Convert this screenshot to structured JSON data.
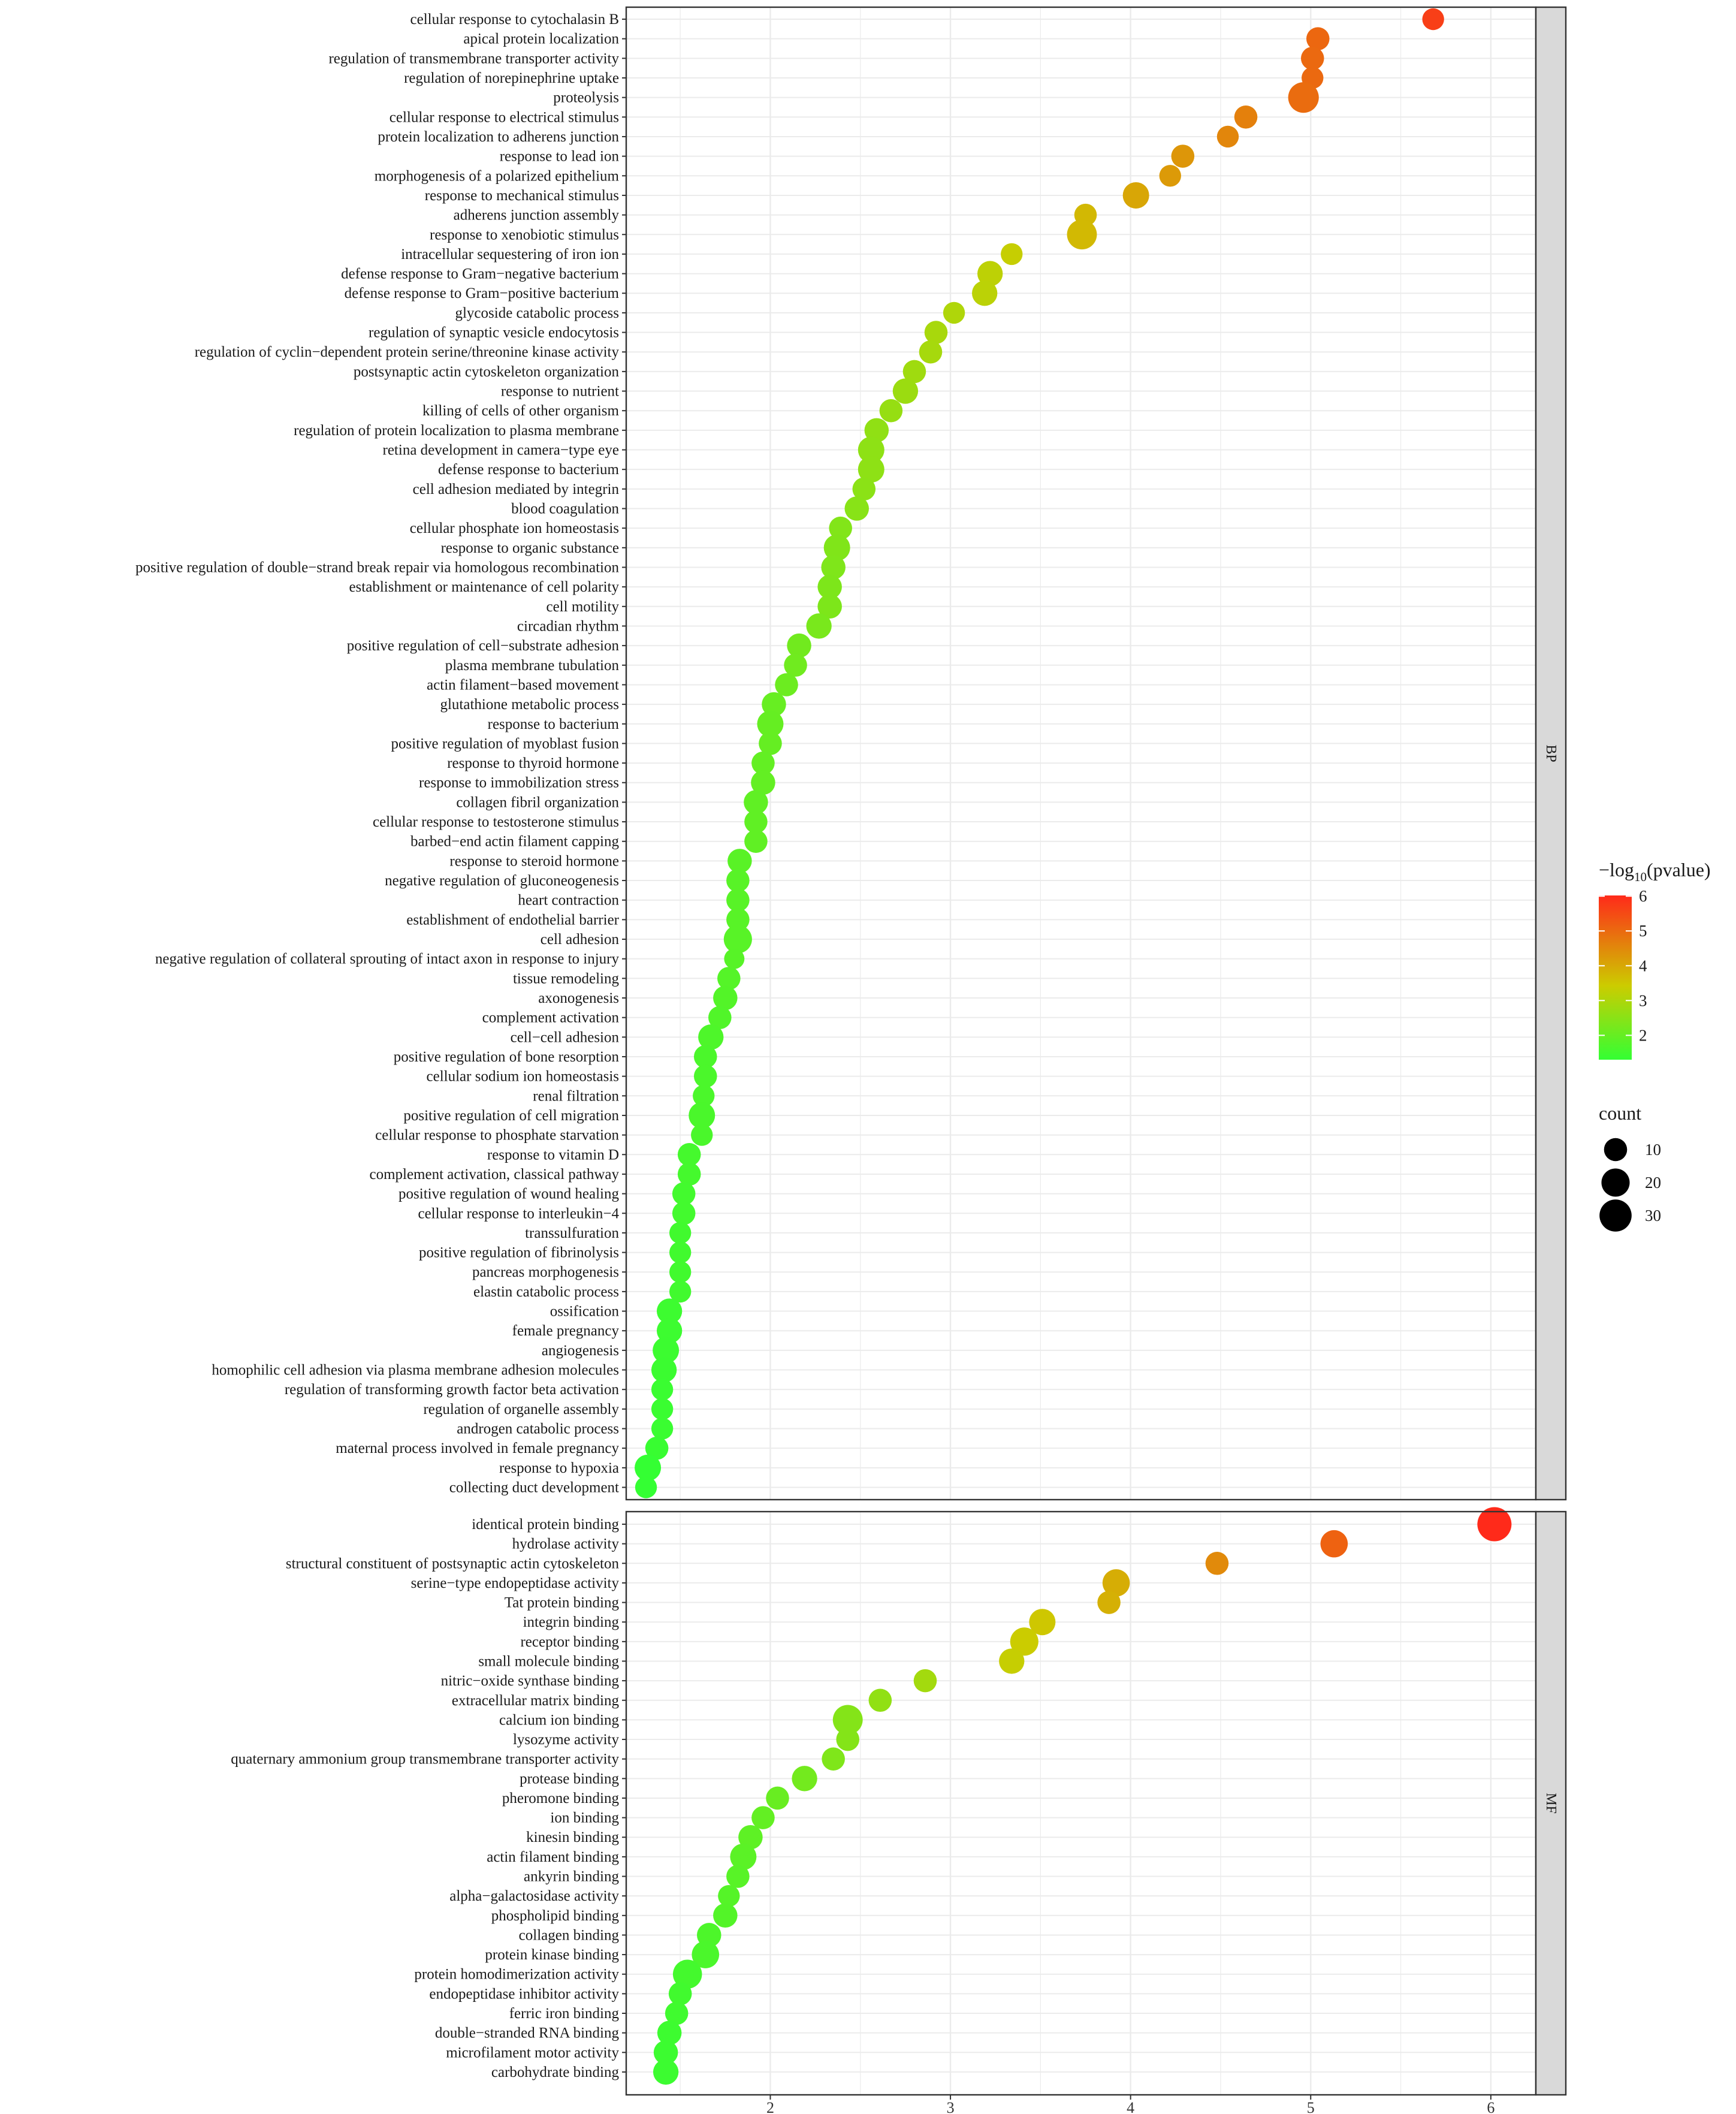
{
  "chart_data": {
    "type": "scatter",
    "title": "",
    "xlabel": "",
    "ylabel": "",
    "xlim": [
      1.2,
      6.25
    ],
    "x_ticks": [
      2,
      3,
      4,
      5,
      6
    ],
    "x_tick_labels": [
      "2",
      "3",
      "4",
      "5",
      "6"
    ],
    "grid": true,
    "facets": [
      {
        "name": "BP",
        "terms": [
          {
            "term": "cellular response to cytochalasin B",
            "x": 5.68,
            "count": 8,
            "logp": 5.68
          },
          {
            "term": "apical protein localization",
            "x": 5.04,
            "count": 10,
            "logp": 5.04
          },
          {
            "term": "regulation of transmembrane transporter activity",
            "x": 5.01,
            "count": 10,
            "logp": 5.01
          },
          {
            "term": "regulation of norepinephrine uptake",
            "x": 5.01,
            "count": 8,
            "logp": 5.01
          },
          {
            "term": "proteolysis",
            "x": 4.96,
            "count": 26,
            "logp": 4.96
          },
          {
            "term": "cellular response to electrical stimulus",
            "x": 4.64,
            "count": 10,
            "logp": 4.64
          },
          {
            "term": "protein localization to adherens junction",
            "x": 4.54,
            "count": 8,
            "logp": 4.54
          },
          {
            "term": "response to lead ion",
            "x": 4.29,
            "count": 10,
            "logp": 4.29
          },
          {
            "term": "morphogenesis of a polarized epithelium",
            "x": 4.22,
            "count": 8,
            "logp": 4.22
          },
          {
            "term": "response to mechanical stimulus",
            "x": 4.03,
            "count": 16,
            "logp": 4.03
          },
          {
            "term": "adherens junction assembly",
            "x": 3.75,
            "count": 9,
            "logp": 3.75
          },
          {
            "term": "response to xenobiotic stimulus",
            "x": 3.73,
            "count": 24,
            "logp": 3.73
          },
          {
            "term": "intracellular sequestering of iron ion",
            "x": 3.34,
            "count": 8,
            "logp": 3.34
          },
          {
            "term": "defense response to Gram−negative bacterium",
            "x": 3.22,
            "count": 14,
            "logp": 3.22
          },
          {
            "term": "defense response to Gram−positive bacterium",
            "x": 3.19,
            "count": 14,
            "logp": 3.19
          },
          {
            "term": "glycoside catabolic process",
            "x": 3.02,
            "count": 8,
            "logp": 3.02
          },
          {
            "term": "regulation of synaptic vesicle endocytosis",
            "x": 2.92,
            "count": 10,
            "logp": 2.92
          },
          {
            "term": "regulation of cyclin−dependent protein serine/threonine kinase activity",
            "x": 2.89,
            "count": 10,
            "logp": 2.89
          },
          {
            "term": "postsynaptic actin cytoskeleton organization",
            "x": 2.8,
            "count": 10,
            "logp": 2.8
          },
          {
            "term": "response to nutrient",
            "x": 2.75,
            "count": 14,
            "logp": 2.75
          },
          {
            "term": "killing of cells of other organism",
            "x": 2.67,
            "count": 10,
            "logp": 2.67
          },
          {
            "term": "regulation of protein localization to plasma membrane",
            "x": 2.59,
            "count": 12,
            "logp": 2.59
          },
          {
            "term": "retina development in camera−type eye",
            "x": 2.56,
            "count": 16,
            "logp": 2.56
          },
          {
            "term": "defense response to bacterium",
            "x": 2.56,
            "count": 16,
            "logp": 2.56
          },
          {
            "term": "cell adhesion mediated by integrin",
            "x": 2.52,
            "count": 10,
            "logp": 2.52
          },
          {
            "term": "blood coagulation",
            "x": 2.48,
            "count": 12,
            "logp": 2.48
          },
          {
            "term": "cellular phosphate ion homeostasis",
            "x": 2.39,
            "count": 10,
            "logp": 2.39
          },
          {
            "term": "response to organic substance",
            "x": 2.37,
            "count": 16,
            "logp": 2.37
          },
          {
            "term": "positive regulation of double−strand break repair via homologous recombination",
            "x": 2.35,
            "count": 12,
            "logp": 2.35
          },
          {
            "term": "establishment or maintenance of cell polarity",
            "x": 2.33,
            "count": 12,
            "logp": 2.33
          },
          {
            "term": "cell motility",
            "x": 2.33,
            "count": 12,
            "logp": 2.33
          },
          {
            "term": "circadian rhythm",
            "x": 2.27,
            "count": 14,
            "logp": 2.27
          },
          {
            "term": "positive regulation of cell−substrate adhesion",
            "x": 2.16,
            "count": 12,
            "logp": 2.16
          },
          {
            "term": "plasma membrane tubulation",
            "x": 2.14,
            "count": 10,
            "logp": 2.14
          },
          {
            "term": "actin filament−based movement",
            "x": 2.09,
            "count": 10,
            "logp": 2.09
          },
          {
            "term": "glutathione metabolic process",
            "x": 2.02,
            "count": 12,
            "logp": 2.02
          },
          {
            "term": "response to bacterium",
            "x": 2.0,
            "count": 16,
            "logp": 2.0
          },
          {
            "term": "positive regulation of myoblast fusion",
            "x": 2.0,
            "count": 10,
            "logp": 2.0
          },
          {
            "term": "response to thyroid hormone",
            "x": 1.96,
            "count": 10,
            "logp": 1.96
          },
          {
            "term": "response to immobilization stress",
            "x": 1.96,
            "count": 12,
            "logp": 1.96
          },
          {
            "term": "collagen fibril organization",
            "x": 1.92,
            "count": 12,
            "logp": 1.92
          },
          {
            "term": "cellular response to testosterone stimulus",
            "x": 1.92,
            "count": 10,
            "logp": 1.92
          },
          {
            "term": "barbed−end actin filament capping",
            "x": 1.92,
            "count": 10,
            "logp": 1.92
          },
          {
            "term": "response to steroid hormone",
            "x": 1.83,
            "count": 12,
            "logp": 1.83
          },
          {
            "term": "negative regulation of gluconeogenesis",
            "x": 1.82,
            "count": 10,
            "logp": 1.82
          },
          {
            "term": "heart contraction",
            "x": 1.82,
            "count": 10,
            "logp": 1.82
          },
          {
            "term": "establishment of endothelial barrier",
            "x": 1.82,
            "count": 10,
            "logp": 1.82
          },
          {
            "term": "cell adhesion",
            "x": 1.82,
            "count": 20,
            "logp": 1.82
          },
          {
            "term": "negative regulation of collateral sprouting of intact axon in response to injury",
            "x": 1.8,
            "count": 6,
            "logp": 1.8
          },
          {
            "term": "tissue remodeling",
            "x": 1.77,
            "count": 10,
            "logp": 1.77
          },
          {
            "term": "axonogenesis",
            "x": 1.75,
            "count": 12,
            "logp": 1.75
          },
          {
            "term": "complement activation",
            "x": 1.72,
            "count": 10,
            "logp": 1.72
          },
          {
            "term": "cell−cell adhesion",
            "x": 1.67,
            "count": 14,
            "logp": 1.67
          },
          {
            "term": "positive regulation of bone resorption",
            "x": 1.64,
            "count": 10,
            "logp": 1.64
          },
          {
            "term": "cellular sodium ion homeostasis",
            "x": 1.64,
            "count": 10,
            "logp": 1.64
          },
          {
            "term": "renal filtration",
            "x": 1.63,
            "count": 8,
            "logp": 1.63
          },
          {
            "term": "positive regulation of cell migration",
            "x": 1.62,
            "count": 16,
            "logp": 1.62
          },
          {
            "term": "cellular response to phosphate starvation",
            "x": 1.62,
            "count": 8,
            "logp": 1.62
          },
          {
            "term": "response to vitamin D",
            "x": 1.55,
            "count": 10,
            "logp": 1.55
          },
          {
            "term": "complement activation, classical pathway",
            "x": 1.55,
            "count": 10,
            "logp": 1.55
          },
          {
            "term": "positive regulation of wound healing",
            "x": 1.52,
            "count": 10,
            "logp": 1.52
          },
          {
            "term": "cellular response to interleukin−4",
            "x": 1.52,
            "count": 10,
            "logp": 1.52
          },
          {
            "term": "transsulfuration",
            "x": 1.5,
            "count": 8,
            "logp": 1.5
          },
          {
            "term": "positive regulation of fibrinolysis",
            "x": 1.5,
            "count": 8,
            "logp": 1.5
          },
          {
            "term": "pancreas morphogenesis",
            "x": 1.5,
            "count": 8,
            "logp": 1.5
          },
          {
            "term": "elastin catabolic process",
            "x": 1.5,
            "count": 8,
            "logp": 1.5
          },
          {
            "term": "ossification",
            "x": 1.44,
            "count": 14,
            "logp": 1.44
          },
          {
            "term": "female pregnancy",
            "x": 1.44,
            "count": 14,
            "logp": 1.44
          },
          {
            "term": "angiogenesis",
            "x": 1.42,
            "count": 16,
            "logp": 1.42
          },
          {
            "term": "homophilic cell adhesion via plasma membrane adhesion molecules",
            "x": 1.41,
            "count": 14,
            "logp": 1.41
          },
          {
            "term": "regulation of transforming growth factor beta activation",
            "x": 1.4,
            "count": 8,
            "logp": 1.4
          },
          {
            "term": "regulation of organelle assembly",
            "x": 1.4,
            "count": 8,
            "logp": 1.4
          },
          {
            "term": "androgen catabolic process",
            "x": 1.4,
            "count": 8,
            "logp": 1.4
          },
          {
            "term": "maternal process involved in female pregnancy",
            "x": 1.37,
            "count": 10,
            "logp": 1.37
          },
          {
            "term": "response to hypoxia",
            "x": 1.32,
            "count": 16,
            "logp": 1.32
          },
          {
            "term": "collecting duct development",
            "x": 1.31,
            "count": 8,
            "logp": 1.31
          }
        ]
      },
      {
        "name": "MF",
        "terms": [
          {
            "term": "identical protein binding",
            "x": 6.02,
            "count": 36,
            "logp": 6.02
          },
          {
            "term": "hydrolase activity",
            "x": 5.13,
            "count": 18,
            "logp": 5.13
          },
          {
            "term": "structural constituent of postsynaptic actin cytoskeleton",
            "x": 4.48,
            "count": 10,
            "logp": 4.48
          },
          {
            "term": "serine−type endopeptidase activity",
            "x": 3.92,
            "count": 18,
            "logp": 3.92
          },
          {
            "term": "Tat protein binding",
            "x": 3.88,
            "count": 10,
            "logp": 3.88
          },
          {
            "term": "integrin binding",
            "x": 3.51,
            "count": 16,
            "logp": 3.51
          },
          {
            "term": "receptor binding",
            "x": 3.41,
            "count": 20,
            "logp": 3.41
          },
          {
            "term": "small molecule binding",
            "x": 3.34,
            "count": 14,
            "logp": 3.34
          },
          {
            "term": "nitric−oxide synthase binding",
            "x": 2.86,
            "count": 10,
            "logp": 2.86
          },
          {
            "term": "extracellular matrix binding",
            "x": 2.61,
            "count": 10,
            "logp": 2.61
          },
          {
            "term": "calcium ion binding",
            "x": 2.43,
            "count": 24,
            "logp": 2.43
          },
          {
            "term": "lysozyme activity",
            "x": 2.43,
            "count": 10,
            "logp": 2.43
          },
          {
            "term": "quaternary ammonium group transmembrane transporter activity",
            "x": 2.35,
            "count": 10,
            "logp": 2.35
          },
          {
            "term": "protease binding",
            "x": 2.19,
            "count": 14,
            "logp": 2.19
          },
          {
            "term": "pheromone binding",
            "x": 2.04,
            "count": 10,
            "logp": 2.04
          },
          {
            "term": "ion binding",
            "x": 1.96,
            "count": 10,
            "logp": 1.96
          },
          {
            "term": "kinesin binding",
            "x": 1.89,
            "count": 12,
            "logp": 1.89
          },
          {
            "term": "actin filament binding",
            "x": 1.85,
            "count": 16,
            "logp": 1.85
          },
          {
            "term": "ankyrin binding",
            "x": 1.82,
            "count": 10,
            "logp": 1.82
          },
          {
            "term": "alpha−galactosidase activity",
            "x": 1.77,
            "count": 8,
            "logp": 1.77
          },
          {
            "term": "phospholipid binding",
            "x": 1.75,
            "count": 12,
            "logp": 1.75
          },
          {
            "term": "collagen binding",
            "x": 1.66,
            "count": 12,
            "logp": 1.66
          },
          {
            "term": "protein kinase binding",
            "x": 1.64,
            "count": 18,
            "logp": 1.64
          },
          {
            "term": "protein homodimerization activity",
            "x": 1.54,
            "count": 22,
            "logp": 1.54
          },
          {
            "term": "endopeptidase inhibitor activity",
            "x": 1.5,
            "count": 10,
            "logp": 1.5
          },
          {
            "term": "ferric iron binding",
            "x": 1.48,
            "count": 10,
            "logp": 1.48
          },
          {
            "term": "double−stranded RNA binding",
            "x": 1.44,
            "count": 12,
            "logp": 1.44
          },
          {
            "term": "microfilament motor activity",
            "x": 1.42,
            "count": 12,
            "logp": 1.42
          },
          {
            "term": "carbohydrate binding",
            "x": 1.42,
            "count": 14,
            "logp": 1.42
          }
        ]
      }
    ],
    "color_legend": {
      "title_prefix": "−log",
      "title_subscript": "10",
      "title_suffix": "(pvalue)",
      "min": 1.3,
      "max": 6.02,
      "ticks": [
        2,
        3,
        4,
        5,
        6
      ],
      "tick_labels": [
        "2",
        "3",
        "4",
        "5",
        "6"
      ],
      "low_color": "#33ff33",
      "mid_color": "#cccc00",
      "high_color": "#ff2a1a"
    },
    "size_legend": {
      "title": "count",
      "counts": [
        10,
        20,
        30
      ],
      "labels": [
        "10",
        "20",
        "30"
      ],
      "point_color": "#000000"
    },
    "strip_color": "#d9d9d9",
    "grid_color": "#ebebeb"
  }
}
